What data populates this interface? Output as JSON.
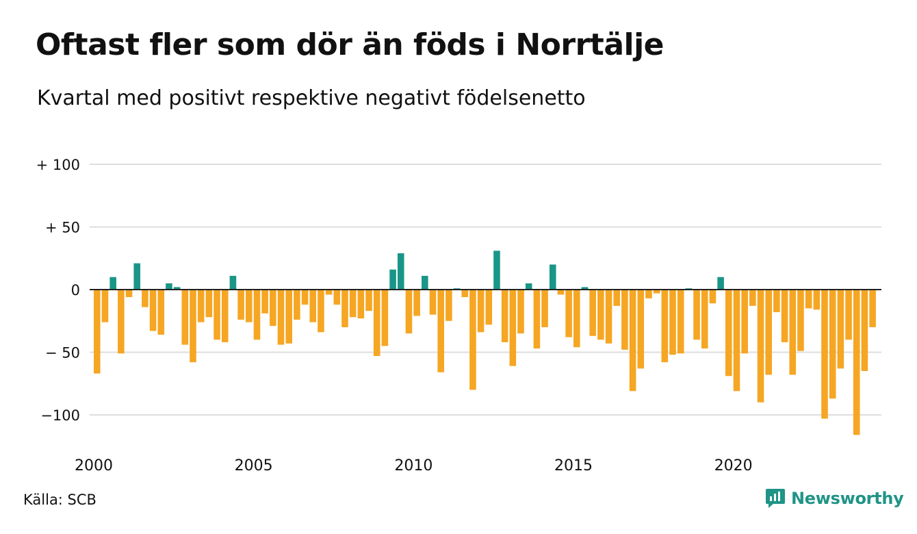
{
  "title": "Oftast fler som dör än föds i Norrtälje",
  "subtitle": "Kvartal med positivt respektive negativt födelsenetto",
  "source": "Källa: SCB",
  "brand": "Newsworthy",
  "colors": {
    "positive": "#1a9688",
    "negative": "#f5a623",
    "grid": "#dddddd",
    "zero_line": "#222222",
    "brand": "#1f9487"
  },
  "chart_data": {
    "type": "bar",
    "title": "Oftast fler som dör än föds i Norrtälje",
    "subtitle": "Kvartal med positivt respektive negativt födelsenetto",
    "xlabel": "",
    "ylabel": "",
    "ylim": [
      -125,
      110
    ],
    "grid": true,
    "x_start": "2000 Q1",
    "x_ticks": [
      "2000",
      "2005",
      "2010",
      "2015",
      "2020"
    ],
    "y_ticks": [
      {
        "value": 100,
        "label": "+ 100"
      },
      {
        "value": 50,
        "label": "+  50"
      },
      {
        "value": 0,
        "label": "0"
      },
      {
        "value": -50,
        "label": "− 50"
      },
      {
        "value": -100,
        "label": "−100"
      }
    ],
    "values": [
      -67,
      -26,
      10,
      -51,
      -6,
      21,
      -14,
      -33,
      -36,
      5,
      2,
      -44,
      -58,
      -26,
      -22,
      -40,
      -42,
      11,
      -24,
      -26,
      -40,
      -19,
      -29,
      -44,
      -43,
      -24,
      -12,
      -26,
      -34,
      -4,
      -12,
      -30,
      -22,
      -23,
      -17,
      -53,
      -45,
      16,
      29,
      -35,
      -21,
      11,
      -20,
      -66,
      -25,
      1,
      -6,
      -80,
      -34,
      -28,
      31,
      -42,
      -61,
      -35,
      5,
      -47,
      -30,
      20,
      -4,
      -38,
      -46,
      2,
      -37,
      -40,
      -43,
      -13,
      -48,
      -81,
      -63,
      -7,
      -3,
      -58,
      -52,
      -51,
      1,
      -40,
      -47,
      -11,
      10,
      -69,
      -81,
      -51,
      -13,
      -90,
      -68,
      -18,
      -42,
      -68,
      -49,
      -15,
      -16,
      -103,
      -87,
      -63,
      -40,
      -116,
      -65,
      -30
    ]
  }
}
